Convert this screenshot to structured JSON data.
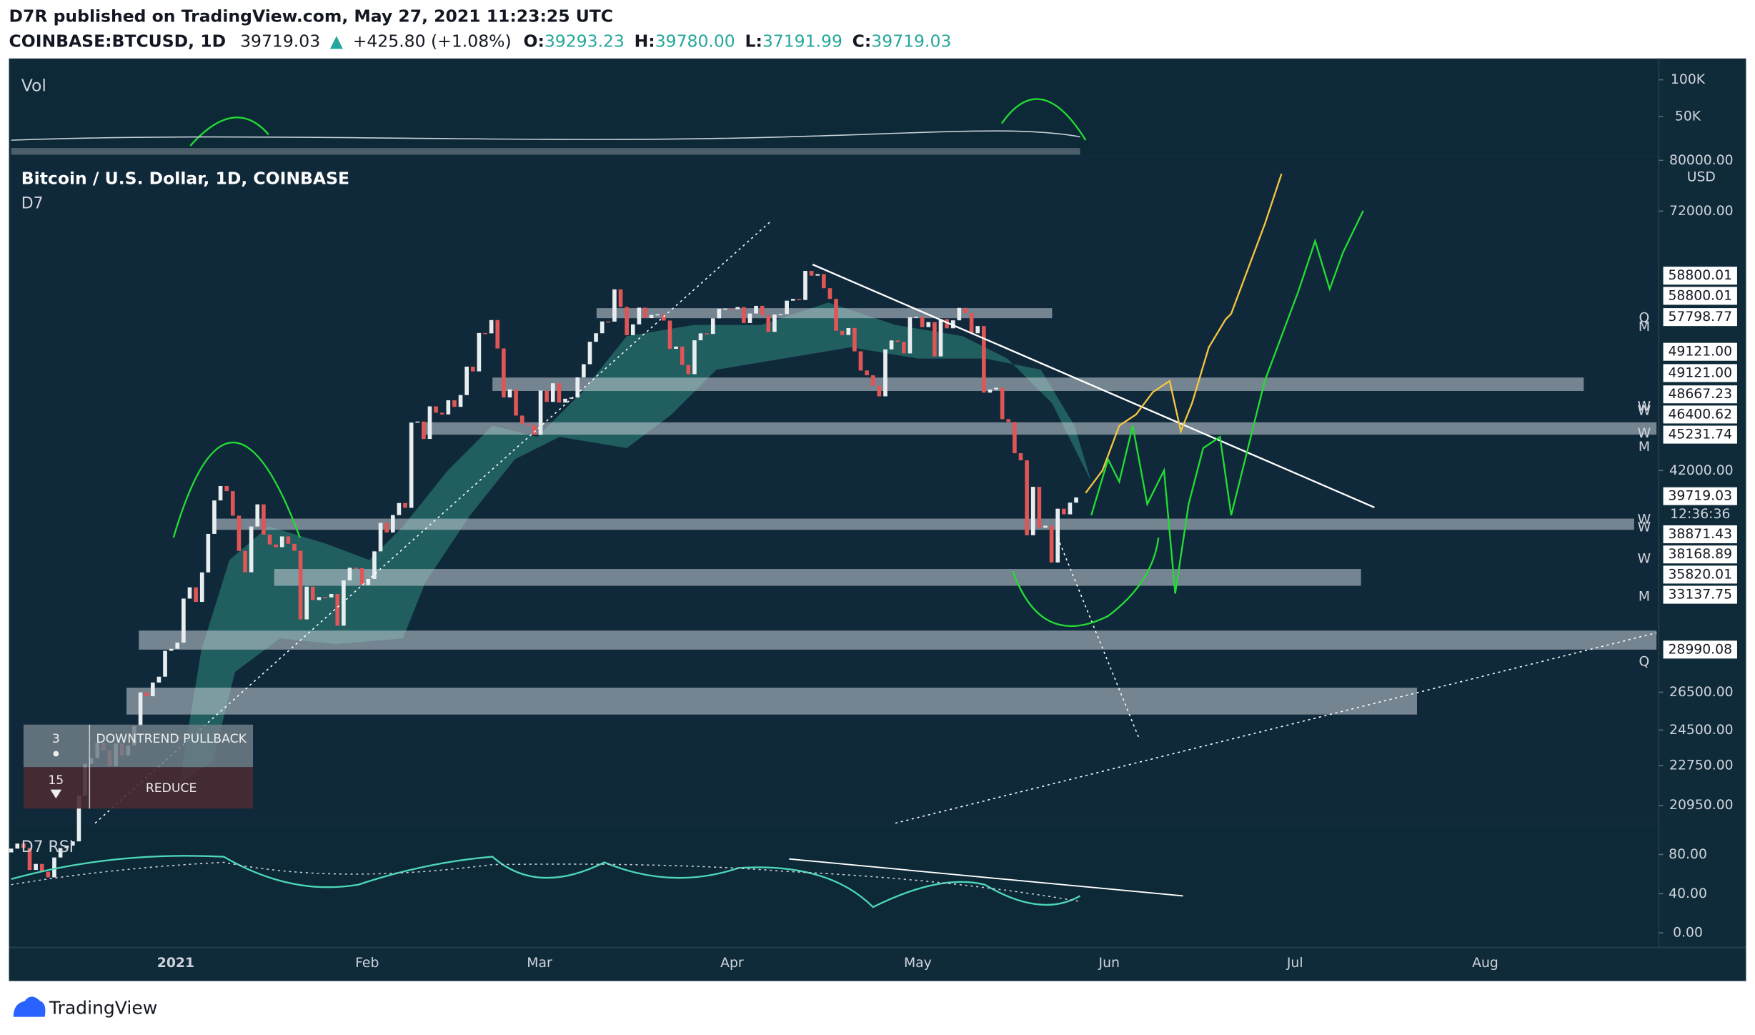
{
  "header": {
    "published": "D7R published on TradingView.com, May 27, 2021 11:23:25 UTC",
    "symbol": "COINBASE:BTCUSD, 1D",
    "last": "39719.03",
    "arrow": "▲",
    "change": "+425.80 (+1.08%)",
    "o_label": "O:",
    "open": "39293.23",
    "h_label": "H:",
    "high": "39780.00",
    "l_label": "L:",
    "low": "37191.99",
    "c_label": "C:",
    "close": "39719.03"
  },
  "chart_data": {
    "type": "candlestick",
    "title": "Bitcoin / U.S. Dollar, 1D, COINBASE",
    "subtitle": "D7",
    "currency": "USD",
    "log_scale": true,
    "up_color": "#e8eef0",
    "down_color": "#e05656",
    "ylim": [
      20190,
      80560
    ],
    "yticks": [
      {
        "value": 80000,
        "label": "80000.00"
      },
      {
        "value": 72000,
        "label": "72000.00"
      },
      {
        "value": 42000,
        "label": "42000.00"
      },
      {
        "value": 26500,
        "label": "26500.00"
      },
      {
        "value": 24500,
        "label": "24500.00"
      },
      {
        "value": 22750,
        "label": "22750.00"
      },
      {
        "value": 20950,
        "label": "20950.00"
      }
    ],
    "open": [
      19000,
      19150,
      19350,
      19180,
      18320,
      18550,
      18250,
      18040,
      18800,
      19170,
      19270,
      19440,
      21380,
      22840,
      23110,
      23860,
      23480,
      22720,
      23820,
      23240,
      23730,
      24710,
      26490,
      26280,
      27040,
      27370,
      28880,
      29000,
      29380,
      32190,
      32950,
      31970,
      33990,
      36820,
      39470,
      40670,
      40240,
      38240,
      35540,
      34000,
      37390,
      39150,
      36770,
      36020,
      35820,
      36630,
      36070,
      35550,
      30830,
      33000,
      32090,
      32290,
      32270,
      32500,
      30430,
      33430,
      34320,
      34290,
      33110,
      33530,
      35510,
      37670,
      36930,
      38290,
      39260,
      38870,
      46400,
      46500,
      44850,
      47990,
      47360,
      47190,
      48600,
      47940,
      49130,
      52120,
      51610,
      55890,
      55850,
      57410,
      54120,
      48890,
      49710,
      47080,
      46300,
      46150,
      45240,
      49590,
      48440,
      50350,
      48370,
      48760,
      48880,
      50970,
      52380,
      54880,
      55860,
      57250,
      57230,
      61190,
      59000,
      55640,
      56900,
      58910,
      57650,
      58030,
      58100,
      57350,
      54080,
      54340,
      52300,
      51310,
      55050,
      55850,
      55780,
      57620,
      58780,
      58800,
      58730,
      58980,
      57060,
      58200,
      59130,
      57990,
      56020,
      58080,
      58120,
      59770,
      59990,
      59860,
      63580,
      62960,
      63160,
      61340,
      60000,
      56150,
      55660,
      56470,
      53800,
      51700,
      51190,
      50100,
      49000,
      54020,
      55030,
      54860,
      53570,
      57750,
      57800,
      56580,
      57170,
      53240,
      57520,
      56440,
      57380,
      58880,
      58250,
      55860,
      56700,
      49380,
      49700,
      49880,
      46730,
      46450,
      43540,
      42900,
      36720,
      40600,
      37300,
      37450,
      34700,
      38800,
      38350,
      39290
    ],
    "close": [
      19150,
      19350,
      19180,
      18320,
      18550,
      18250,
      18040,
      18800,
      19170,
      19270,
      19440,
      21380,
      22840,
      23110,
      23860,
      23480,
      22720,
      23820,
      23240,
      23730,
      24710,
      26490,
      26280,
      27040,
      27370,
      28880,
      29000,
      29380,
      32190,
      32950,
      31970,
      33990,
      36820,
      39470,
      40670,
      40240,
      38240,
      35540,
      34000,
      37390,
      39150,
      36770,
      36020,
      35820,
      36630,
      36070,
      35550,
      30830,
      33000,
      32090,
      32290,
      32270,
      32500,
      30430,
      33430,
      34320,
      34290,
      33110,
      33530,
      35510,
      37670,
      36930,
      38290,
      39260,
      38870,
      46400,
      46500,
      44850,
      47990,
      47360,
      47190,
      48600,
      47940,
      49130,
      52120,
      51610,
      55890,
      55850,
      57410,
      54120,
      48890,
      49710,
      47080,
      46300,
      46150,
      45240,
      49590,
      48440,
      50350,
      48370,
      48760,
      48880,
      50970,
      52380,
      54880,
      55860,
      57250,
      57230,
      61190,
      59000,
      55640,
      56900,
      58910,
      57650,
      58030,
      58100,
      57350,
      54080,
      54340,
      52300,
      51310,
      55050,
      55850,
      55780,
      57620,
      58780,
      58800,
      58730,
      58980,
      57060,
      58200,
      59130,
      57990,
      56020,
      58080,
      58120,
      59770,
      59990,
      59860,
      63580,
      62960,
      63160,
      61340,
      60000,
      56150,
      55660,
      56470,
      53800,
      51700,
      51190,
      50100,
      49000,
      54020,
      55030,
      54860,
      53570,
      57750,
      57800,
      56580,
      57170,
      53240,
      57520,
      56440,
      57380,
      58880,
      58250,
      55860,
      56700,
      49380,
      49700,
      49880,
      46730,
      46450,
      43540,
      42900,
      36720,
      40600,
      37300,
      37450,
      34700,
      38800,
      38350,
      39290,
      39719.03
    ],
    "price_levels": [
      "58800.01",
      "58800.01",
      "57798.77",
      "49121.00",
      "49121.00",
      "48667.23",
      "46400.62",
      "45231.74",
      "39719.03",
      "12:36:36",
      "38871.43",
      "38168.89",
      "35820.01",
      "33137.75",
      "28990.08"
    ],
    "level_marks": [
      "Q",
      "M",
      "W",
      "W",
      "W",
      "M",
      "W",
      "W",
      "W",
      "M",
      "Q"
    ],
    "time_labels": [
      "2021",
      "Feb",
      "Mar",
      "Apr",
      "May",
      "Jun",
      "Jul",
      "Aug"
    ]
  },
  "volume": {
    "title": "Vol",
    "ylim": [
      0,
      119700
    ],
    "yticks": [
      {
        "value": 100000,
        "label": "100K"
      },
      {
        "value": 50000,
        "label": "50K"
      }
    ]
  },
  "rsi": {
    "title": "D7 RSI",
    "ylim": [
      -13.7,
      109.7
    ],
    "yticks": [
      {
        "value": 80,
        "label": "80.00"
      },
      {
        "value": 40,
        "label": "40.00"
      },
      {
        "value": 0,
        "label": "0.00"
      }
    ]
  },
  "signal_table": {
    "rows": [
      [
        "3",
        "DOWNTREND PULLBACK"
      ],
      [
        "15",
        "REDUCE"
      ]
    ]
  },
  "footer": {
    "brand": "TradingView"
  }
}
